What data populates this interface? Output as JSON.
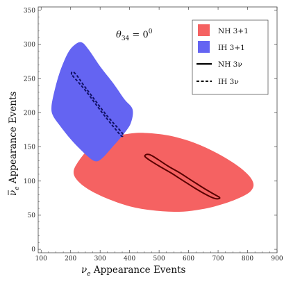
{
  "chart_data": {
    "type": "area",
    "title": "",
    "annotation": {
      "symbol": "θ",
      "subscript": "34",
      "text": " = 0",
      "superscript": "0"
    },
    "xlabel": {
      "symbol": "ν",
      "subscript": "e",
      "text": " Appearance  Events"
    },
    "ylabel": {
      "symbol": "ν",
      "overline": true,
      "subscript": "e",
      "text": " Appearance  Events"
    },
    "xlim": [
      90,
      900
    ],
    "ylim": [
      -5,
      355
    ],
    "xticks": [
      100,
      200,
      300,
      400,
      500,
      600,
      700,
      800,
      900
    ],
    "yticks": [
      0,
      50,
      100,
      150,
      200,
      250,
      300,
      350
    ],
    "legend_position": "top-right",
    "series": [
      {
        "name": "NH 3+1",
        "kind": "filled-region",
        "color": "#f56262",
        "points": [
          [
            210,
            112
          ],
          [
            222,
            126
          ],
          [
            265,
            148
          ],
          [
            330,
            163
          ],
          [
            410,
            170
          ],
          [
            470,
            170
          ],
          [
            540,
            166
          ],
          [
            620,
            156
          ],
          [
            700,
            140
          ],
          [
            780,
            118
          ],
          [
            818,
            99
          ],
          [
            810,
            85
          ],
          [
            760,
            73
          ],
          [
            690,
            63
          ],
          [
            620,
            57
          ],
          [
            560,
            55
          ],
          [
            480,
            57
          ],
          [
            400,
            63
          ],
          [
            320,
            75
          ],
          [
            260,
            88
          ],
          [
            225,
            100
          ]
        ]
      },
      {
        "name": "IH 3+1",
        "kind": "filled-region",
        "color": "#6464f2",
        "points": [
          [
            135,
            208
          ],
          [
            143,
            228
          ],
          [
            162,
            258
          ],
          [
            190,
            287
          ],
          [
            215,
            300
          ],
          [
            238,
            303
          ],
          [
            262,
            292
          ],
          [
            300,
            268
          ],
          [
            345,
            243
          ],
          [
            382,
            220
          ],
          [
            410,
            205
          ],
          [
            404,
            185
          ],
          [
            380,
            169
          ],
          [
            342,
            150
          ],
          [
            306,
            133
          ],
          [
            284,
            129
          ],
          [
            256,
            137
          ],
          [
            205,
            159
          ],
          [
            162,
            182
          ],
          [
            140,
            196
          ]
        ]
      },
      {
        "name": "NH 3ν",
        "kind": "contour",
        "style": "solid",
        "color": "#5a0000",
        "points": [
          [
            452,
            136
          ],
          [
            458,
            139
          ],
          [
            472,
            138
          ],
          [
            495,
            132
          ],
          [
            530,
            122
          ],
          [
            570,
            112
          ],
          [
            610,
            101
          ],
          [
            650,
            90
          ],
          [
            685,
            81
          ],
          [
            705,
            76
          ],
          [
            700,
            74
          ],
          [
            685,
            75
          ],
          [
            660,
            80
          ],
          [
            620,
            90
          ],
          [
            580,
            101
          ],
          [
            540,
            112
          ],
          [
            500,
            122
          ],
          [
            470,
            130
          ]
        ]
      },
      {
        "name": "IH 3ν",
        "kind": "contour",
        "style": "dashed",
        "color": "#111166",
        "points": [
          [
            204,
            256
          ],
          [
            208,
            260
          ],
          [
            222,
            254
          ],
          [
            245,
            240
          ],
          [
            280,
            220
          ],
          [
            315,
            200
          ],
          [
            345,
            185
          ],
          [
            372,
            172
          ],
          [
            378,
            167
          ],
          [
            372,
            166
          ],
          [
            352,
            176
          ],
          [
            320,
            193
          ],
          [
            288,
            211
          ],
          [
            255,
            230
          ],
          [
            228,
            244
          ]
        ]
      }
    ]
  }
}
